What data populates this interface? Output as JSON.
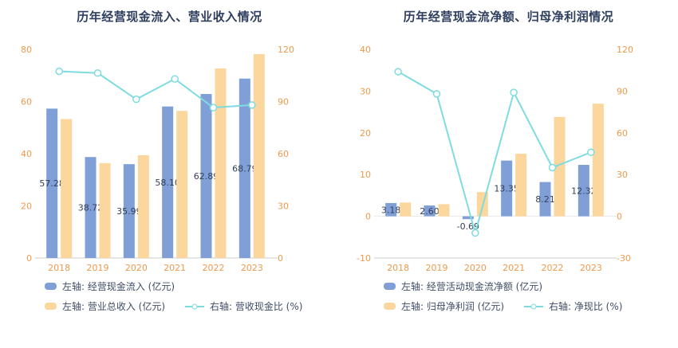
{
  "colors": {
    "background": "#ffffff",
    "bar_blue": "#7f9fd6",
    "bar_yellow": "#fbd79e",
    "line_teal": "#7edce0",
    "axis_label": "#ee9a4d",
    "data_label": "#333f56",
    "title": "#2e3e5e",
    "legend_text": "#3f4d66",
    "axis_line": "#cccccc"
  },
  "chart_data": [
    {
      "type": "bar",
      "subtype": "bar+line-dual-axis",
      "title": "历年经营现金流入、营业收入情况",
      "categories": [
        "2018",
        "2019",
        "2020",
        "2021",
        "2022",
        "2023"
      ],
      "left_axis": {
        "min": 0,
        "max": 80,
        "ticks": [
          80,
          60,
          40,
          20,
          0
        ]
      },
      "right_axis": {
        "min": 0,
        "max": 120,
        "ticks": [
          120,
          90,
          60,
          30,
          0
        ]
      },
      "grid": "off",
      "legend_position": "bottom",
      "series": [
        {
          "name": "左轴: 经营现金流入 (亿元)",
          "kind": "bar",
          "axis": "left",
          "color": "bar_blue",
          "values": [
            57.28,
            38.72,
            35.99,
            58.1,
            62.89,
            68.79
          ],
          "labels": [
            "57.28",
            "38.72",
            "35.99",
            "58.10",
            "62.89",
            "68.79"
          ]
        },
        {
          "name": "左轴: 营业总收入 (亿元)",
          "kind": "bar",
          "axis": "left",
          "color": "bar_yellow",
          "values": [
            53.3,
            36.4,
            39.4,
            56.4,
            72.7,
            78.2
          ]
        },
        {
          "name": "右轴: 营收现金比 (%)",
          "kind": "line",
          "axis": "right",
          "color": "line_teal",
          "values": [
            107.4,
            106.4,
            91.3,
            103.0,
            86.5,
            88.0
          ]
        }
      ]
    },
    {
      "type": "bar",
      "subtype": "bar+line-dual-axis",
      "title": "历年经营现金流净额、归母净利润情况",
      "categories": [
        "2018",
        "2019",
        "2020",
        "2021",
        "2022",
        "2023"
      ],
      "left_axis": {
        "min": -10,
        "max": 40,
        "ticks": [
          40,
          30,
          20,
          10,
          0,
          -10
        ]
      },
      "right_axis": {
        "min": -30,
        "max": 120,
        "ticks": [
          120,
          90,
          60,
          30,
          0,
          -30
        ]
      },
      "grid": "off",
      "legend_position": "bottom",
      "series": [
        {
          "name": "左轴: 经营活动现金流净额 (亿元)",
          "kind": "bar",
          "axis": "left",
          "color": "bar_blue",
          "values": [
            3.18,
            2.6,
            -0.69,
            13.35,
            8.21,
            12.32
          ],
          "labels": [
            "3.18",
            "2.60",
            "-0.69",
            "13.35",
            "8.21",
            "12.32"
          ]
        },
        {
          "name": "左轴: 归母净利润 (亿元)",
          "kind": "bar",
          "axis": "left",
          "color": "bar_yellow",
          "values": [
            3.3,
            2.9,
            5.8,
            15.0,
            23.8,
            27.0
          ]
        },
        {
          "name": "右轴: 净现比 (%)",
          "kind": "line",
          "axis": "right",
          "color": "line_teal",
          "values": [
            104.0,
            88.0,
            -12.0,
            89.0,
            35.0,
            46.0
          ]
        }
      ]
    }
  ]
}
